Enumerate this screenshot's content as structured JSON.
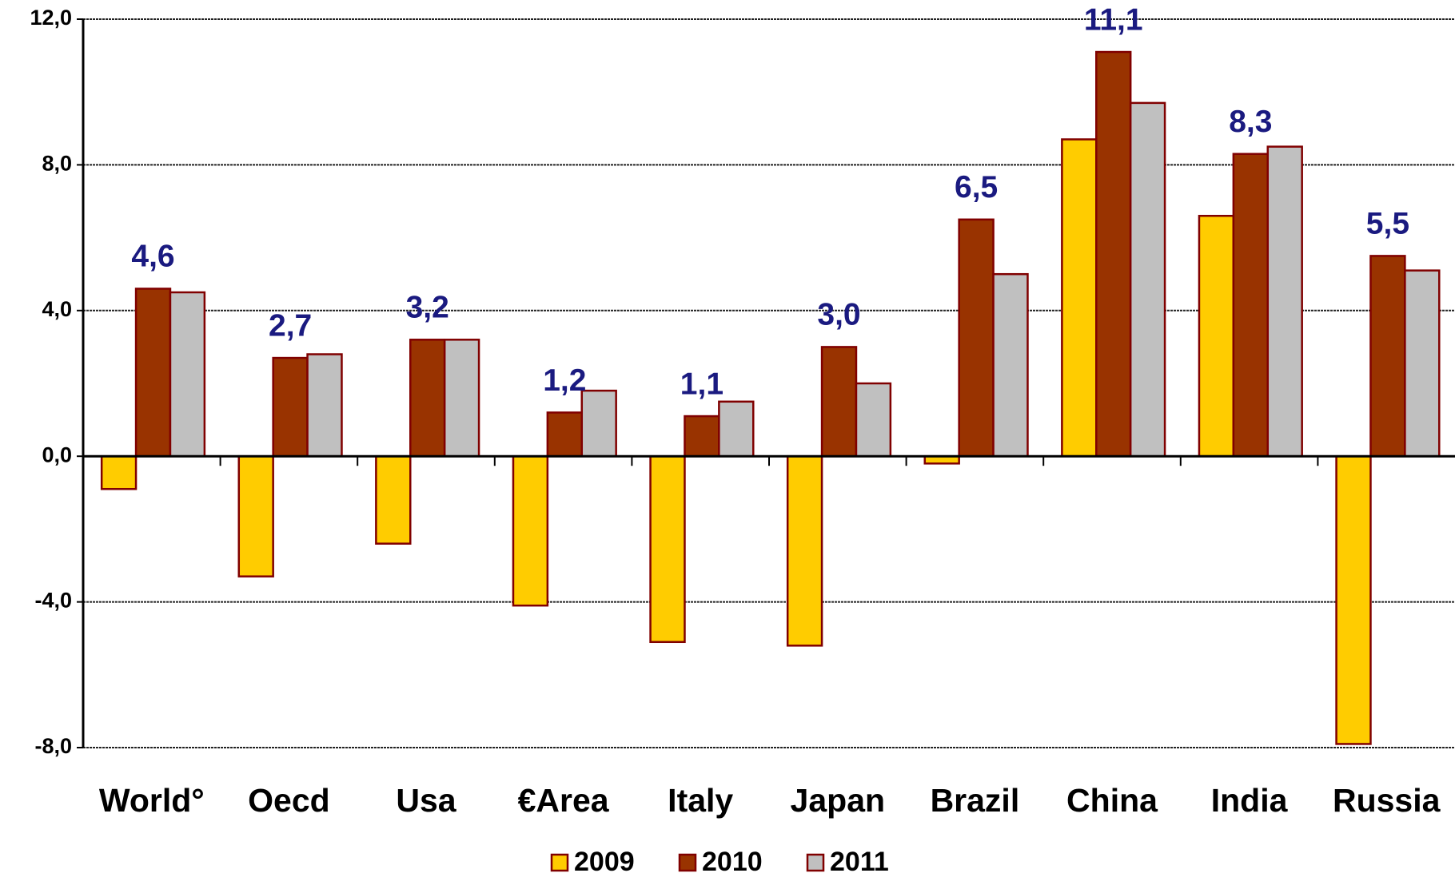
{
  "chart_data": {
    "type": "bar",
    "categories": [
      "World°",
      "Oecd",
      "Usa",
      "€Area",
      "Italy",
      "Japan",
      "Brazil",
      "China",
      "India",
      "Russia"
    ],
    "series": [
      {
        "name": "2009",
        "color": "#ffcc00",
        "values": [
          -0.9,
          -3.3,
          -2.4,
          -4.1,
          -5.1,
          -5.2,
          -0.2,
          8.7,
          6.6,
          -7.9
        ]
      },
      {
        "name": "2010",
        "color": "#993300",
        "values": [
          4.6,
          2.7,
          3.2,
          1.2,
          1.1,
          3.0,
          6.5,
          11.1,
          8.3,
          5.5
        ],
        "value_labels": [
          "4,6",
          "2,7",
          "3,2",
          "1,2",
          "1,1",
          "3,0",
          "6,5",
          "11,1",
          "8,3",
          "5,5"
        ]
      },
      {
        "name": "2011",
        "color": "#c0c0c0",
        "values": [
          4.5,
          2.8,
          3.2,
          1.8,
          1.5,
          2.0,
          5.0,
          9.7,
          8.5,
          5.1
        ]
      }
    ],
    "ylim": [
      -8,
      12
    ],
    "yticks": [
      {
        "value": -8,
        "label": "-8,0"
      },
      {
        "value": -4,
        "label": "-4,0"
      },
      {
        "value": 0,
        "label": "0,0"
      },
      {
        "value": 4,
        "label": "4,0"
      },
      {
        "value": 8,
        "label": "8,0"
      },
      {
        "value": 12,
        "label": "12,0"
      }
    ],
    "grid": true,
    "legend": "bottom"
  }
}
